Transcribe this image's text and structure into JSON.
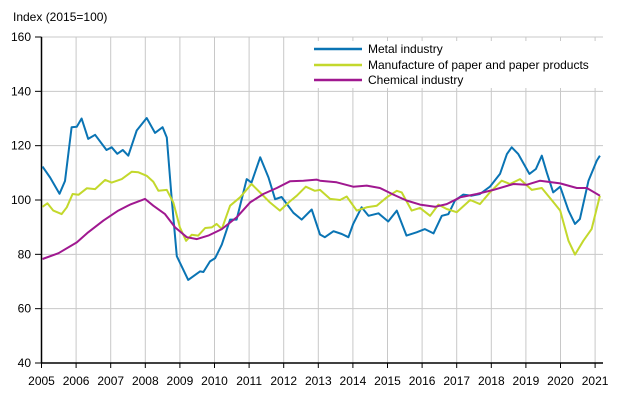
{
  "chart_data": {
    "type": "line",
    "title": "",
    "ylabel": "Index (2015=100)",
    "xlabel": "",
    "xlim": [
      2005,
      2021.25
    ],
    "ylim": [
      40,
      160
    ],
    "yticks": [
      40,
      60,
      80,
      100,
      120,
      140,
      160
    ],
    "xticks": [
      2005,
      2006,
      2007,
      2008,
      2009,
      2010,
      2011,
      2012,
      2013,
      2014,
      2015,
      2016,
      2017,
      2018,
      2019,
      2020,
      2021
    ],
    "grid": true,
    "legend_position": "top-center",
    "series": [
      {
        "name": "Metal industry",
        "color": "#0a74b4",
        "x": [
          2005.03,
          2005.25,
          2005.52,
          2005.68,
          2005.87,
          2006.02,
          2006.16,
          2006.35,
          2006.55,
          2006.88,
          2007.03,
          2007.19,
          2007.35,
          2007.51,
          2007.75,
          2008.04,
          2008.28,
          2008.5,
          2008.62,
          2008.76,
          2008.91,
          2009.24,
          2009.58,
          2009.68,
          2009.87,
          2010.02,
          2010.21,
          2010.45,
          2010.64,
          2010.93,
          2011.07,
          2011.32,
          2011.56,
          2011.75,
          2011.94,
          2012.28,
          2012.52,
          2012.81,
          2013.05,
          2013.19,
          2013.44,
          2013.68,
          2013.87,
          2014.01,
          2014.25,
          2014.45,
          2014.74,
          2015.02,
          2015.27,
          2015.55,
          2015.84,
          2016.08,
          2016.33,
          2016.57,
          2016.76,
          2016.95,
          2017.19,
          2017.43,
          2017.67,
          2017.96,
          2018.25,
          2018.45,
          2018.59,
          2018.78,
          2019.1,
          2019.29,
          2019.46,
          2019.6,
          2019.79,
          2019.99,
          2020.23,
          2020.42,
          2020.56,
          2020.81,
          2021.05,
          2021.14
        ],
        "y": [
          112.3,
          108.3,
          102.3,
          107,
          126.8,
          127,
          130,
          122.5,
          124,
          118.4,
          119.4,
          117,
          118.4,
          116.3,
          125.6,
          130.2,
          124.7,
          126.8,
          123,
          100.9,
          79.3,
          70.6,
          73.7,
          73.5,
          77.4,
          78.6,
          83.6,
          92.8,
          92.8,
          107.7,
          106.4,
          115.7,
          108.3,
          100.3,
          101.1,
          95.3,
          92.8,
          96.5,
          87.3,
          86.3,
          88.5,
          87.5,
          86.3,
          91.2,
          97.3,
          94.2,
          95.1,
          92.1,
          96.1,
          86.9,
          88.1,
          89.3,
          87.7,
          94.2,
          94.8,
          99.8,
          102,
          101.6,
          102.2,
          104.9,
          109.6,
          116.9,
          119.4,
          116.9,
          109.6,
          111.4,
          116.3,
          110.2,
          102.8,
          104.9,
          96.1,
          91.2,
          93,
          107.1,
          114.5,
          116.3
        ]
      },
      {
        "name": "Manufacture of paper and paper products",
        "color": "#c3d82c",
        "x": [
          2005.03,
          2005.17,
          2005.34,
          2005.58,
          2005.73,
          2005.9,
          2006.07,
          2006.31,
          2006.55,
          2006.84,
          2007.03,
          2007.32,
          2007.61,
          2007.8,
          2008.04,
          2008.23,
          2008.38,
          2008.62,
          2008.81,
          2009.0,
          2009.18,
          2009.34,
          2009.53,
          2009.73,
          2009.92,
          2010.06,
          2010.21,
          2010.45,
          2010.74,
          2011.07,
          2011.36,
          2011.6,
          2011.89,
          2012.18,
          2012.38,
          2012.64,
          2012.9,
          2013.05,
          2013.34,
          2013.63,
          2013.82,
          2014.11,
          2014.4,
          2014.69,
          2014.98,
          2015.27,
          2015.41,
          2015.7,
          2015.94,
          2016.23,
          2016.47,
          2016.71,
          2017.0,
          2017.39,
          2017.67,
          2017.96,
          2018.3,
          2018.54,
          2018.83,
          2019.17,
          2019.46,
          2019.84,
          2019.99,
          2020.23,
          2020.42,
          2020.66,
          2020.9,
          2021.14
        ],
        "y": [
          97.5,
          98.8,
          96.1,
          94.8,
          97.3,
          102.2,
          101.9,
          104.3,
          104,
          107.4,
          106.4,
          107.7,
          110.4,
          110.2,
          108.9,
          106.7,
          103.4,
          103.7,
          99.1,
          89.9,
          85,
          87.2,
          86.9,
          89.7,
          89.9,
          91.2,
          89.3,
          97.9,
          101,
          105.9,
          102.2,
          99.1,
          96.1,
          99.5,
          101.6,
          104.9,
          103.4,
          103.7,
          100.4,
          100,
          101.3,
          96.1,
          97.3,
          97.9,
          101,
          103.4,
          102.8,
          96.1,
          97.1,
          94.2,
          98.3,
          96.7,
          95.5,
          100,
          98.5,
          102.8,
          107.1,
          105.9,
          107.7,
          103.7,
          104.4,
          98.5,
          96.1,
          85,
          79.9,
          85,
          89.3,
          101.6
        ]
      },
      {
        "name": "Chemical industry",
        "color": "#a01890",
        "x": [
          2005.03,
          2005.49,
          2006.02,
          2006.35,
          2006.79,
          2007.22,
          2007.56,
          2007.99,
          2008.23,
          2008.57,
          2008.86,
          2009.2,
          2009.49,
          2009.82,
          2010.21,
          2010.64,
          2011.03,
          2011.41,
          2011.8,
          2012.18,
          2012.57,
          2012.95,
          2013.05,
          2013.53,
          2014.01,
          2014.4,
          2014.78,
          2015.17,
          2015.55,
          2015.94,
          2016.37,
          2016.71,
          2017.1,
          2017.58,
          2018.06,
          2018.64,
          2019.02,
          2019.41,
          2019.99,
          2020.47,
          2020.76,
          2021.14
        ],
        "y": [
          78.3,
          80.4,
          84.4,
          88.1,
          92.4,
          96.1,
          98.3,
          100.4,
          97.9,
          94.8,
          89.9,
          86.3,
          85.6,
          86.9,
          89.3,
          93.6,
          99.1,
          102.2,
          104.4,
          106.9,
          107.1,
          107.5,
          107.1,
          106.5,
          104.9,
          105.3,
          104.4,
          102,
          99.8,
          98.3,
          97.5,
          98.5,
          101,
          102.2,
          103.7,
          105.9,
          105.6,
          107.1,
          106.1,
          104.4,
          104.4,
          101.6
        ]
      }
    ]
  }
}
